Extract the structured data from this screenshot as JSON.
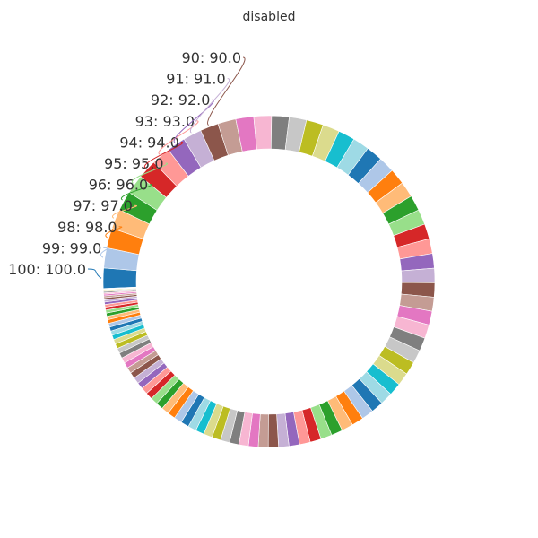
{
  "chart_data": {
    "type": "pie",
    "title": "disabled",
    "donut": true,
    "start_angle_deg": 90,
    "direction": "clockwise",
    "sort": "ascending-from-top",
    "values": [
      1,
      2,
      3,
      4,
      5,
      6,
      7,
      8,
      9,
      10,
      11,
      12,
      13,
      14,
      15,
      16,
      17,
      18,
      19,
      20,
      21,
      22,
      23,
      24,
      25,
      26,
      27,
      28,
      29,
      30,
      31,
      32,
      33,
      34,
      35,
      36,
      37,
      38,
      39,
      40,
      41,
      42,
      43,
      44,
      45,
      46,
      47,
      48,
      49,
      50,
      51,
      52,
      53,
      54,
      55,
      56,
      57,
      58,
      59,
      60,
      61,
      62,
      63,
      64,
      65,
      66,
      67,
      68,
      69,
      70,
      71,
      72,
      73,
      74,
      75,
      76,
      77,
      78,
      79,
      80,
      81,
      82,
      83,
      84,
      85,
      86,
      87,
      88,
      89,
      90,
      91,
      92,
      93,
      94,
      95,
      96,
      97,
      98,
      99,
      100
    ],
    "labeled_slices": [
      {
        "value": 90,
        "text": "90: 90.0"
      },
      {
        "value": 91,
        "text": "91: 91.0"
      },
      {
        "value": 92,
        "text": "92: 92.0"
      },
      {
        "value": 93,
        "text": "93: 93.0"
      },
      {
        "value": 94,
        "text": "94: 94.0"
      },
      {
        "value": 95,
        "text": "95: 95.0"
      },
      {
        "value": 96,
        "text": "96: 96.0"
      },
      {
        "value": 97,
        "text": "97: 97.0"
      },
      {
        "value": 98,
        "text": "98: 98.0"
      },
      {
        "value": 99,
        "text": "99: 99.0"
      },
      {
        "value": 100,
        "text": "100: 100.0"
      }
    ],
    "palette": [
      "#1f77b4",
      "#aec7e8",
      "#ff7f0e",
      "#ffbb78",
      "#2ca02c",
      "#98df8a",
      "#d62728",
      "#ff9896",
      "#9467bd",
      "#c5b0d5",
      "#8c564b",
      "#c49c94",
      "#e377c2",
      "#f7b6d2",
      "#7f7f7f",
      "#c7c7c7",
      "#bcbd22",
      "#dbdb8d",
      "#17becf",
      "#9edae5"
    ]
  }
}
